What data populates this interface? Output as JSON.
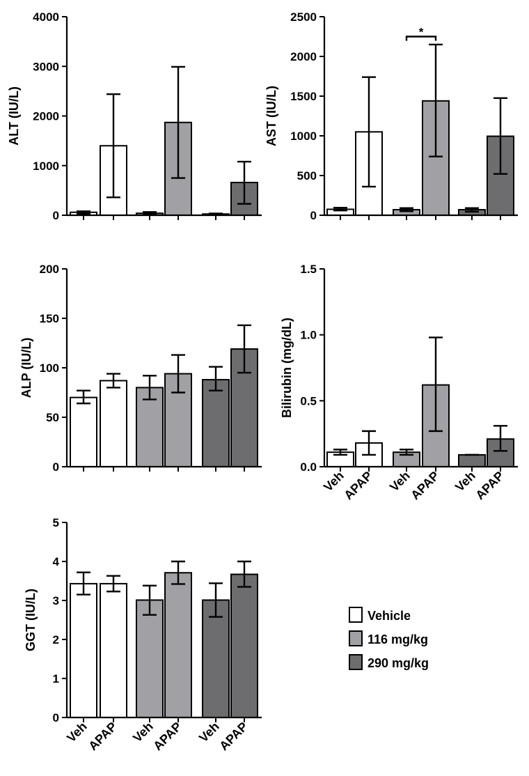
{
  "legend": {
    "items": [
      {
        "label": "Vehicle",
        "color": "#ffffff"
      },
      {
        "label": "116 mg/kg",
        "color": "#a1a1a5"
      },
      {
        "label": "290 mg/kg",
        "color": "#6d6d6f"
      }
    ]
  },
  "chart_data": [
    {
      "id": "alt",
      "type": "bar",
      "title": "",
      "xlabel": "",
      "ylabel": "ALT (IU/L)",
      "ylim": [
        0,
        4000
      ],
      "yticks": [
        0,
        1000,
        2000,
        3000,
        4000
      ],
      "ytick_labels": [
        "0",
        "1000",
        "2000",
        "3000",
        "4000"
      ],
      "categories": [
        "Veh",
        "APAP",
        "Veh",
        "APAP",
        "Veh",
        "APAP"
      ],
      "show_category_labels": false,
      "values": [
        60,
        1400,
        40,
        1870,
        25,
        660
      ],
      "error_low": [
        30,
        360,
        20,
        750,
        15,
        230
      ],
      "error_high": [
        80,
        2440,
        65,
        2990,
        35,
        1080
      ],
      "bar_groups": [
        "Vehicle",
        "Vehicle",
        "116 mg/kg",
        "116 mg/kg",
        "290 mg/kg",
        "290 mg/kg"
      ],
      "annotations": []
    },
    {
      "id": "ast",
      "type": "bar",
      "title": "",
      "xlabel": "",
      "ylabel": "AST (IU/L)",
      "ylim": [
        0,
        2500
      ],
      "yticks": [
        0,
        500,
        1000,
        1500,
        2000,
        2500
      ],
      "ytick_labels": [
        "0",
        "500",
        "1000",
        "1500",
        "2000",
        "2500"
      ],
      "categories": [
        "Veh",
        "APAP",
        "Veh",
        "APAP",
        "Veh",
        "APAP"
      ],
      "show_category_labels": false,
      "values": [
        75,
        1050,
        70,
        1440,
        70,
        995
      ],
      "error_low": [
        60,
        360,
        50,
        740,
        45,
        520
      ],
      "error_high": [
        95,
        1740,
        90,
        2150,
        90,
        1475
      ],
      "bar_groups": [
        "Vehicle",
        "Vehicle",
        "116 mg/kg",
        "116 mg/kg",
        "290 mg/kg",
        "290 mg/kg"
      ],
      "annotations": [
        {
          "text": "*",
          "from_bar": 2,
          "to_bar": 3,
          "y": 2250
        }
      ]
    },
    {
      "id": "alp",
      "type": "bar",
      "title": "",
      "xlabel": "",
      "ylabel": "ALP (IU/L)",
      "ylim": [
        0,
        200
      ],
      "yticks": [
        0,
        50,
        100,
        150,
        200
      ],
      "ytick_labels": [
        "0",
        "50",
        "100",
        "150",
        "200"
      ],
      "categories": [
        "Veh",
        "APAP",
        "Veh",
        "APAP",
        "Veh",
        "APAP"
      ],
      "show_category_labels": false,
      "values": [
        70,
        87,
        80,
        94,
        88,
        119
      ],
      "error_low": [
        64,
        80,
        68,
        75,
        77,
        95
      ],
      "error_high": [
        77,
        94,
        92,
        113,
        101,
        143
      ],
      "bar_groups": [
        "Vehicle",
        "Vehicle",
        "116 mg/kg",
        "116 mg/kg",
        "290 mg/kg",
        "290 mg/kg"
      ],
      "annotations": []
    },
    {
      "id": "bilirubin",
      "type": "bar",
      "title": "",
      "xlabel": "",
      "ylabel": "Bilirubin  (mg/dL)",
      "ylim": [
        0,
        1.5
      ],
      "yticks": [
        0,
        0.5,
        1.0,
        1.5
      ],
      "ytick_labels": [
        "0.0",
        "0.5",
        "1.0",
        "1.5"
      ],
      "categories": [
        "Veh",
        "APAP",
        "Veh",
        "APAP",
        "Veh",
        "APAP"
      ],
      "show_category_labels": true,
      "values": [
        0.11,
        0.18,
        0.11,
        0.62,
        0.09,
        0.21
      ],
      "error_low": [
        0.09,
        0.09,
        0.09,
        0.27,
        0.09,
        0.12
      ],
      "error_high": [
        0.13,
        0.27,
        0.13,
        0.98,
        0.09,
        0.31
      ],
      "bar_groups": [
        "Vehicle",
        "Vehicle",
        "116 mg/kg",
        "116 mg/kg",
        "290 mg/kg",
        "290 mg/kg"
      ],
      "annotations": []
    },
    {
      "id": "ggt",
      "type": "bar",
      "title": "",
      "xlabel": "",
      "ylabel": "GGT (IU/L)",
      "ylim": [
        0,
        5
      ],
      "yticks": [
        0,
        1,
        2,
        3,
        4,
        5
      ],
      "ytick_labels": [
        "0",
        "1",
        "2",
        "3",
        "4",
        "5"
      ],
      "categories": [
        "Veh",
        "APAP",
        "Veh",
        "APAP",
        "Veh",
        "APAP"
      ],
      "show_category_labels": true,
      "values": [
        3.43,
        3.43,
        3.01,
        3.71,
        3.01,
        3.67
      ],
      "error_low": [
        3.15,
        3.23,
        2.63,
        3.42,
        2.58,
        3.35
      ],
      "error_high": [
        3.72,
        3.63,
        3.38,
        4.0,
        3.44,
        4.0
      ],
      "bar_groups": [
        "Vehicle",
        "Vehicle",
        "116 mg/kg",
        "116 mg/kg",
        "290 mg/kg",
        "290 mg/kg"
      ],
      "annotations": []
    }
  ]
}
